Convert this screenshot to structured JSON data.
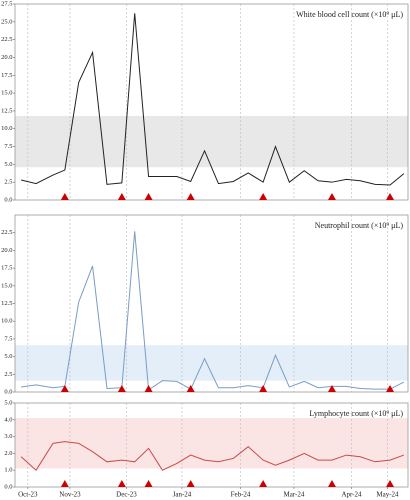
{
  "chart_data": [
    {
      "type": "line",
      "title": "White blood cell count (×10⁹ μL)",
      "x": [
        -0.13,
        0.16,
        0.49,
        0.72,
        0.99,
        1.26,
        1.54,
        1.83,
        2.08,
        2.35,
        2.62,
        2.9,
        3.17,
        3.44,
        3.71,
        4.0,
        4.29,
        4.58,
        4.82,
        5.09,
        5.38,
        5.65,
        5.92,
        6.2,
        6.47,
        6.76,
        7.05,
        7.32
      ],
      "values": [
        2.8,
        2.3,
        3.5,
        4.2,
        16.5,
        20.7,
        2.2,
        2.4,
        26.2,
        3.3,
        3.3,
        3.3,
        2.6,
        6.9,
        2.3,
        2.6,
        3.8,
        2.5,
        7.5,
        2.5,
        4.1,
        2.7,
        2.5,
        2.9,
        2.7,
        2.2,
        2.1,
        3.7
      ],
      "color": "#222222",
      "band": [
        4.6,
        11.8
      ],
      "band_color": "#e8e8e8",
      "events_x": [
        0.72,
        1.83,
        2.35,
        3.17,
        4.58,
        5.92,
        7.05
      ],
      "event_color": "#cc0000",
      "xlim": [
        -0.25,
        7.4
      ],
      "ylim": [
        0,
        27.5
      ],
      "yticks": [
        {
          "value": 0,
          "label": "0.0"
        },
        2.5,
        {
          "value": 5,
          "label": "5.0"
        },
        7.5,
        {
          "value": 10,
          "label": "10.0"
        },
        12.5,
        {
          "value": 15,
          "label": "15.0"
        },
        17.5,
        {
          "value": 20,
          "label": "20.0"
        },
        22.5,
        {
          "value": 25,
          "label": "25.0"
        },
        27.5
      ]
    },
    {
      "type": "line",
      "title": "Neutrophil count (×10⁹ μL)",
      "x": [
        -0.13,
        0.16,
        0.49,
        0.72,
        0.99,
        1.26,
        1.54,
        1.83,
        2.08,
        2.35,
        2.62,
        2.9,
        3.17,
        3.44,
        3.71,
        4.0,
        4.29,
        4.58,
        4.82,
        5.09,
        5.38,
        5.65,
        5.92,
        6.2,
        6.47,
        6.76,
        7.05,
        7.32
      ],
      "values": [
        0.7,
        1.0,
        0.6,
        0.8,
        12.7,
        17.8,
        0.5,
        0.6,
        22.7,
        0.3,
        1.6,
        1.5,
        0.4,
        4.7,
        0.6,
        0.6,
        0.9,
        0.6,
        5.2,
        0.7,
        1.5,
        0.6,
        0.8,
        0.8,
        0.5,
        0.4,
        0.4,
        1.4
      ],
      "color": "#7a9cc6",
      "band": [
        1.6,
        6.6
      ],
      "band_color": "#e4eef9",
      "events_x": [
        0.72,
        1.83,
        2.35,
        3.17,
        4.58,
        5.92,
        7.05
      ],
      "event_color": "#cc0000",
      "xlim": [
        -0.25,
        7.4
      ],
      "ylim": [
        0,
        25
      ],
      "yticks": [
        {
          "value": 0,
          "label": "0.0"
        },
        2.5,
        {
          "value": 5,
          "label": "5.0"
        },
        7.5,
        {
          "value": 10,
          "label": "10.0"
        },
        12.5,
        {
          "value": 15,
          "label": "15.0"
        },
        17.5,
        {
          "value": 20,
          "label": "20.0"
        },
        22.5
      ]
    },
    {
      "type": "line",
      "title": "Lymphocyte count (×10⁹ μL)",
      "x": [
        -0.13,
        0.16,
        0.49,
        0.72,
        0.99,
        1.26,
        1.54,
        1.83,
        2.08,
        2.35,
        2.62,
        2.9,
        3.17,
        3.44,
        3.71,
        4.0,
        4.29,
        4.58,
        4.82,
        5.09,
        5.38,
        5.65,
        5.92,
        6.2,
        6.47,
        6.76,
        7.05,
        7.32
      ],
      "values": [
        1.8,
        1.0,
        2.6,
        2.7,
        2.6,
        2.1,
        1.5,
        1.6,
        1.5,
        2.3,
        1.0,
        1.4,
        1.9,
        1.6,
        1.5,
        1.7,
        2.4,
        1.6,
        1.3,
        1.6,
        2.0,
        1.6,
        1.6,
        1.9,
        1.8,
        1.5,
        1.6,
        1.9
      ],
      "color": "#c94a4a",
      "band": [
        1.1,
        4.1
      ],
      "band_color": "#fbe4e4",
      "events_x": [
        0.72,
        1.83,
        2.35,
        3.17,
        4.58,
        5.92,
        7.05
      ],
      "event_color": "#cc0000",
      "xlim": [
        -0.25,
        7.4
      ],
      "ylim": [
        0,
        5
      ],
      "yticks": [
        {
          "value": 0,
          "label": "0.0"
        },
        {
          "value": 1,
          "label": "1.0"
        },
        {
          "value": 2,
          "label": "2.0"
        },
        {
          "value": 3,
          "label": "3.0"
        },
        {
          "value": 4,
          "label": "4.0"
        },
        {
          "value": 5,
          "label": "5.0"
        }
      ],
      "xticks": [
        {
          "value": 0,
          "label": "Oct-23"
        },
        {
          "value": 0.82,
          "label": "Nov-23"
        },
        {
          "value": 1.92,
          "label": "Dec-23"
        },
        {
          "value": 3.0,
          "label": "Jan-24"
        },
        {
          "value": 4.14,
          "label": "Feb-24"
        },
        {
          "value": 5.18,
          "label": "Mar-24"
        },
        {
          "value": 6.3,
          "label": "Apr-24"
        },
        {
          "value": 7.0,
          "label": "May-24"
        }
      ]
    }
  ]
}
